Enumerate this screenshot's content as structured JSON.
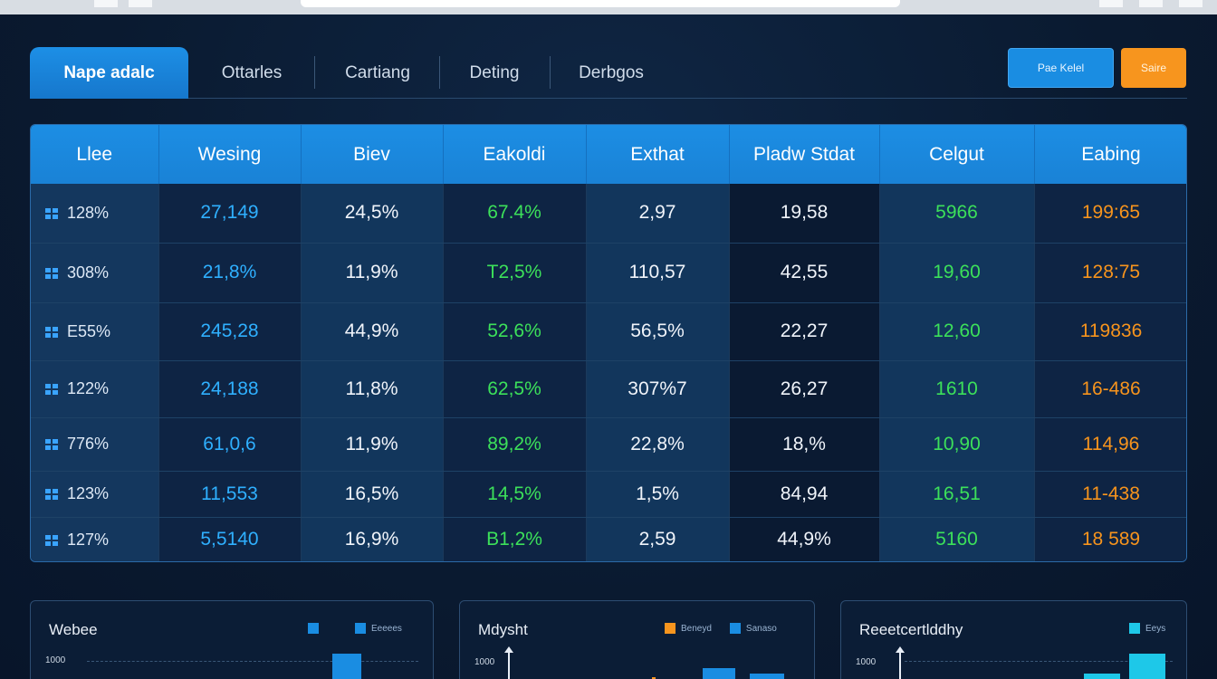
{
  "tabs": [
    {
      "label": "Nape adalc",
      "active": true
    },
    {
      "label": "Ottarles",
      "active": false
    },
    {
      "label": "Cartiang",
      "active": false
    },
    {
      "label": "Deting",
      "active": false
    },
    {
      "label": "Derbgos",
      "active": false
    }
  ],
  "buttons": {
    "primary_label": "Pae Kelel",
    "secondary_label": "Saire"
  },
  "table": {
    "headers": [
      "Llee",
      "Wesing",
      "Biev",
      "Eakoldi",
      "Exthat",
      "Pladw Stdat",
      "Celgut",
      "Eabing"
    ],
    "rows": [
      [
        "128%",
        "27,149",
        "24,5%",
        "67.4%",
        "2,97",
        "19,58",
        "5966",
        "199:65"
      ],
      [
        "308%",
        "21,8%",
        "11,9%",
        "T2,5%",
        "110,57",
        "42,55",
        "19,60",
        "128:75"
      ],
      [
        "E55%",
        "245,28",
        "44,9%",
        "52,6%",
        "56,5%",
        "22,27",
        "12,60",
        "119836"
      ],
      [
        "122%",
        "24,188",
        "11,8%",
        "62,5%",
        "307%7",
        "26,27",
        "1610",
        "16-486"
      ],
      [
        "776%",
        "61,0,6",
        "11,9%",
        "89,2%",
        "22,8%",
        "18,%",
        "10,90",
        "114,96"
      ],
      [
        "123%",
        "11,553",
        "16,5%",
        "14,5%",
        "1,5%",
        "84,94",
        "16,51",
        "11-438"
      ],
      [
        "127%",
        "5,5140",
        "16,9%",
        "B1,2%",
        "2,59",
        "44,9%",
        "5160",
        "18 589"
      ]
    ]
  },
  "panels": [
    {
      "title": "Webee",
      "ytick": "1000",
      "legend": [
        "Eeeees"
      ]
    },
    {
      "title": "Mdysht",
      "ytick": "1000",
      "legend": [
        "Beneyd",
        "Sanaso"
      ]
    },
    {
      "title": "Reeetcertlddhy",
      "ytick": "1000",
      "legend": [
        "Eeys"
      ]
    }
  ],
  "colors": {
    "accent_blue": "#1a8de2",
    "accent_orange": "#f7951e",
    "value_green": "#3ce05a",
    "value_cyan": "#2fb0ff",
    "legend_cyan": "#1ec8e8"
  }
}
